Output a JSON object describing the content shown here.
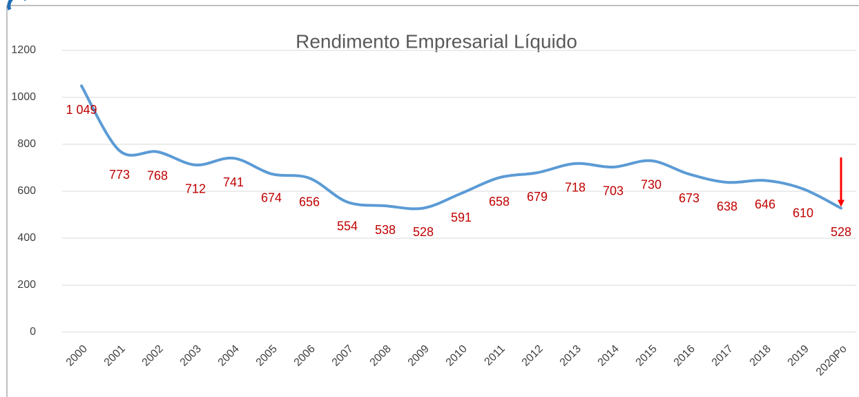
{
  "chart_data": {
    "type": "line",
    "title": "Rendimento Empresarial Líquido",
    "categories": [
      "2000",
      "2001",
      "2002",
      "2003",
      "2004",
      "2005",
      "2006",
      "2007",
      "2008",
      "2009",
      "2010",
      "2011",
      "2012",
      "2013",
      "2014",
      "2015",
      "2016",
      "2017",
      "2018",
      "2019",
      "2020Po"
    ],
    "values": [
      1049,
      773,
      768,
      712,
      741,
      674,
      656,
      554,
      538,
      528,
      591,
      658,
      679,
      718,
      703,
      730,
      673,
      638,
      646,
      610,
      528
    ],
    "value_labels": [
      "1 049",
      "773",
      "768",
      "712",
      "741",
      "674",
      "656",
      "554",
      "538",
      "528",
      "591",
      "658",
      "679",
      "718",
      "703",
      "730",
      "673",
      "638",
      "646",
      "610",
      "528"
    ],
    "color": "#5b9bd5",
    "label_color": "#c00000",
    "ylim": [
      0,
      1200
    ],
    "yticks": [
      0,
      200,
      400,
      600,
      800,
      1000,
      1200
    ],
    "grid": true
  }
}
